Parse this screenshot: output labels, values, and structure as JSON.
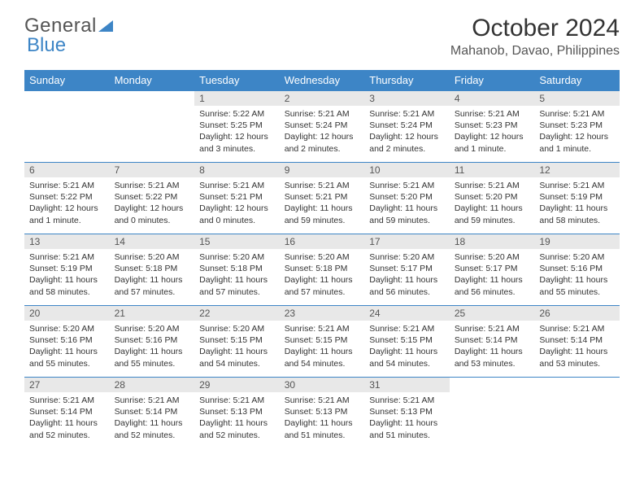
{
  "logo": {
    "text1": "General",
    "text2": "Blue"
  },
  "title": "October 2024",
  "location": "Mahanob, Davao, Philippines",
  "colors": {
    "header_bg": "#3d85c6",
    "header_fg": "#ffffff",
    "daynum_bg": "#e8e8e8",
    "border": "#3d85c6"
  },
  "weekdays": [
    "Sunday",
    "Monday",
    "Tuesday",
    "Wednesday",
    "Thursday",
    "Friday",
    "Saturday"
  ],
  "weeks": [
    [
      null,
      null,
      {
        "n": "1",
        "sr": "Sunrise: 5:22 AM",
        "ss": "Sunset: 5:25 PM",
        "dl": "Daylight: 12 hours and 3 minutes."
      },
      {
        "n": "2",
        "sr": "Sunrise: 5:21 AM",
        "ss": "Sunset: 5:24 PM",
        "dl": "Daylight: 12 hours and 2 minutes."
      },
      {
        "n": "3",
        "sr": "Sunrise: 5:21 AM",
        "ss": "Sunset: 5:24 PM",
        "dl": "Daylight: 12 hours and 2 minutes."
      },
      {
        "n": "4",
        "sr": "Sunrise: 5:21 AM",
        "ss": "Sunset: 5:23 PM",
        "dl": "Daylight: 12 hours and 1 minute."
      },
      {
        "n": "5",
        "sr": "Sunrise: 5:21 AM",
        "ss": "Sunset: 5:23 PM",
        "dl": "Daylight: 12 hours and 1 minute."
      }
    ],
    [
      {
        "n": "6",
        "sr": "Sunrise: 5:21 AM",
        "ss": "Sunset: 5:22 PM",
        "dl": "Daylight: 12 hours and 1 minute."
      },
      {
        "n": "7",
        "sr": "Sunrise: 5:21 AM",
        "ss": "Sunset: 5:22 PM",
        "dl": "Daylight: 12 hours and 0 minutes."
      },
      {
        "n": "8",
        "sr": "Sunrise: 5:21 AM",
        "ss": "Sunset: 5:21 PM",
        "dl": "Daylight: 12 hours and 0 minutes."
      },
      {
        "n": "9",
        "sr": "Sunrise: 5:21 AM",
        "ss": "Sunset: 5:21 PM",
        "dl": "Daylight: 11 hours and 59 minutes."
      },
      {
        "n": "10",
        "sr": "Sunrise: 5:21 AM",
        "ss": "Sunset: 5:20 PM",
        "dl": "Daylight: 11 hours and 59 minutes."
      },
      {
        "n": "11",
        "sr": "Sunrise: 5:21 AM",
        "ss": "Sunset: 5:20 PM",
        "dl": "Daylight: 11 hours and 59 minutes."
      },
      {
        "n": "12",
        "sr": "Sunrise: 5:21 AM",
        "ss": "Sunset: 5:19 PM",
        "dl": "Daylight: 11 hours and 58 minutes."
      }
    ],
    [
      {
        "n": "13",
        "sr": "Sunrise: 5:21 AM",
        "ss": "Sunset: 5:19 PM",
        "dl": "Daylight: 11 hours and 58 minutes."
      },
      {
        "n": "14",
        "sr": "Sunrise: 5:20 AM",
        "ss": "Sunset: 5:18 PM",
        "dl": "Daylight: 11 hours and 57 minutes."
      },
      {
        "n": "15",
        "sr": "Sunrise: 5:20 AM",
        "ss": "Sunset: 5:18 PM",
        "dl": "Daylight: 11 hours and 57 minutes."
      },
      {
        "n": "16",
        "sr": "Sunrise: 5:20 AM",
        "ss": "Sunset: 5:18 PM",
        "dl": "Daylight: 11 hours and 57 minutes."
      },
      {
        "n": "17",
        "sr": "Sunrise: 5:20 AM",
        "ss": "Sunset: 5:17 PM",
        "dl": "Daylight: 11 hours and 56 minutes."
      },
      {
        "n": "18",
        "sr": "Sunrise: 5:20 AM",
        "ss": "Sunset: 5:17 PM",
        "dl": "Daylight: 11 hours and 56 minutes."
      },
      {
        "n": "19",
        "sr": "Sunrise: 5:20 AM",
        "ss": "Sunset: 5:16 PM",
        "dl": "Daylight: 11 hours and 55 minutes."
      }
    ],
    [
      {
        "n": "20",
        "sr": "Sunrise: 5:20 AM",
        "ss": "Sunset: 5:16 PM",
        "dl": "Daylight: 11 hours and 55 minutes."
      },
      {
        "n": "21",
        "sr": "Sunrise: 5:20 AM",
        "ss": "Sunset: 5:16 PM",
        "dl": "Daylight: 11 hours and 55 minutes."
      },
      {
        "n": "22",
        "sr": "Sunrise: 5:20 AM",
        "ss": "Sunset: 5:15 PM",
        "dl": "Daylight: 11 hours and 54 minutes."
      },
      {
        "n": "23",
        "sr": "Sunrise: 5:21 AM",
        "ss": "Sunset: 5:15 PM",
        "dl": "Daylight: 11 hours and 54 minutes."
      },
      {
        "n": "24",
        "sr": "Sunrise: 5:21 AM",
        "ss": "Sunset: 5:15 PM",
        "dl": "Daylight: 11 hours and 54 minutes."
      },
      {
        "n": "25",
        "sr": "Sunrise: 5:21 AM",
        "ss": "Sunset: 5:14 PM",
        "dl": "Daylight: 11 hours and 53 minutes."
      },
      {
        "n": "26",
        "sr": "Sunrise: 5:21 AM",
        "ss": "Sunset: 5:14 PM",
        "dl": "Daylight: 11 hours and 53 minutes."
      }
    ],
    [
      {
        "n": "27",
        "sr": "Sunrise: 5:21 AM",
        "ss": "Sunset: 5:14 PM",
        "dl": "Daylight: 11 hours and 52 minutes."
      },
      {
        "n": "28",
        "sr": "Sunrise: 5:21 AM",
        "ss": "Sunset: 5:14 PM",
        "dl": "Daylight: 11 hours and 52 minutes."
      },
      {
        "n": "29",
        "sr": "Sunrise: 5:21 AM",
        "ss": "Sunset: 5:13 PM",
        "dl": "Daylight: 11 hours and 52 minutes."
      },
      {
        "n": "30",
        "sr": "Sunrise: 5:21 AM",
        "ss": "Sunset: 5:13 PM",
        "dl": "Daylight: 11 hours and 51 minutes."
      },
      {
        "n": "31",
        "sr": "Sunrise: 5:21 AM",
        "ss": "Sunset: 5:13 PM",
        "dl": "Daylight: 11 hours and 51 minutes."
      },
      null,
      null
    ]
  ]
}
